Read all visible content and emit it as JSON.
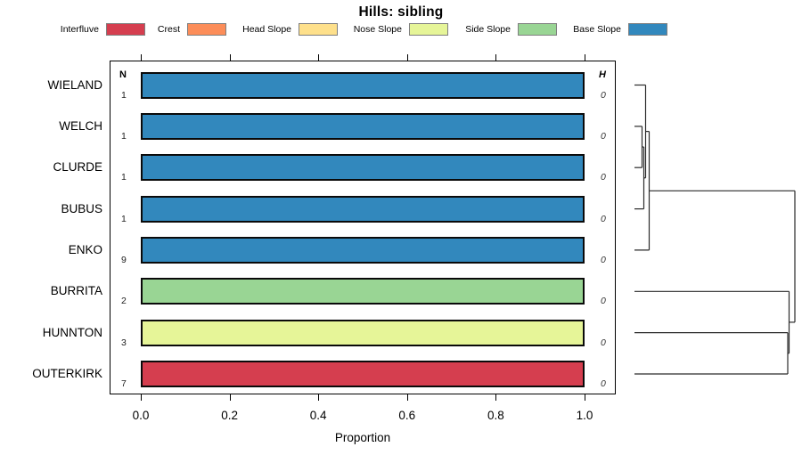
{
  "title": "Hills: sibling",
  "legend": {
    "items": [
      {
        "label": "Interfluve",
        "color": "#D53E4F"
      },
      {
        "label": "Crest",
        "color": "#FC8D59"
      },
      {
        "label": "Head Slope",
        "color": "#FEE08B"
      },
      {
        "label": "Nose Slope",
        "color": "#E6F598"
      },
      {
        "label": "Side Slope",
        "color": "#99D594"
      },
      {
        "label": "Base Slope",
        "color": "#3288BD"
      }
    ]
  },
  "chart_data": {
    "type": "bar",
    "orientation": "horizontal",
    "title": "Hills: sibling",
    "xlabel": "Proportion",
    "xlim": [
      0.0,
      1.0
    ],
    "x_ticks": [
      "0.0",
      "0.2",
      "0.4",
      "0.6",
      "0.8",
      "1.0"
    ],
    "n_header": "N",
    "h_header": "H",
    "categories": [
      "WIELAND",
      "WELCH",
      "CLURDE",
      "BUBUS",
      "ENKO",
      "BURRITA",
      "HUNNTON",
      "OUTERKIRK"
    ],
    "rows": [
      {
        "label": "WIELAND",
        "n": "1",
        "h": "0",
        "class": "Base Slope",
        "proportion": 1.0,
        "color": "#3288BD"
      },
      {
        "label": "WELCH",
        "n": "1",
        "h": "0",
        "class": "Base Slope",
        "proportion": 1.0,
        "color": "#3288BD"
      },
      {
        "label": "CLURDE",
        "n": "1",
        "h": "0",
        "class": "Base Slope",
        "proportion": 1.0,
        "color": "#3288BD"
      },
      {
        "label": "BUBUS",
        "n": "1",
        "h": "0",
        "class": "Base Slope",
        "proportion": 1.0,
        "color": "#3288BD"
      },
      {
        "label": "ENKO",
        "n": "9",
        "h": "0",
        "class": "Base Slope",
        "proportion": 1.0,
        "color": "#3288BD"
      },
      {
        "label": "BURRITA",
        "n": "2",
        "h": "0",
        "class": "Side Slope",
        "proportion": 1.0,
        "color": "#99D594"
      },
      {
        "label": "HUNNTON",
        "n": "3",
        "h": "0",
        "class": "Nose Slope",
        "proportion": 1.0,
        "color": "#E6F598"
      },
      {
        "label": "OUTERKIRK",
        "n": "7",
        "h": "0",
        "class": "Interfluve",
        "proportion": 1.0,
        "color": "#D53E4F"
      }
    ],
    "legend_categories": [
      "Interfluve",
      "Crest",
      "Head Slope",
      "Nose Slope",
      "Side Slope",
      "Base Slope"
    ],
    "dendrogram": {
      "description": "hierarchical clustering of rows, heights ~0 for top five rows, drawn to right of plot",
      "merges": [
        [
          "WELCH",
          "CLURDE"
        ],
        [
          [
            "WELCH",
            "CLURDE"
          ],
          "BUBUS"
        ],
        [
          "WIELAND",
          [
            [
              "WELCH",
              "CLURDE"
            ],
            "BUBUS"
          ]
        ],
        [
          [
            "WIELAND",
            "WELCH",
            "CLURDE",
            "BUBUS"
          ],
          "ENKO"
        ],
        [
          "HUNNTON",
          "OUTERKIRK"
        ],
        [
          "BURRITA",
          [
            "HUNNTON",
            "OUTERKIRK"
          ]
        ],
        [
          [
            "WIELAND",
            "WELCH",
            "CLURDE",
            "BUBUS",
            "ENKO"
          ],
          [
            "BURRITA",
            "HUNNTON",
            "OUTERKIRK"
          ]
        ]
      ],
      "segments": [
        [
          712,
          95.5,
          724.5,
          95.5
        ],
        [
          712,
          141.9,
          720.5,
          141.9
        ],
        [
          712,
          188.2,
          720.5,
          188.2
        ],
        [
          712,
          234.6,
          722.5,
          234.6
        ],
        [
          712,
          280.9,
          728.5,
          280.9
        ],
        [
          712,
          327.3,
          885.5,
          327.3
        ],
        [
          712,
          373.6,
          884,
          373.6
        ],
        [
          712,
          420.0,
          884,
          420.0
        ],
        [
          720.5,
          141.9,
          720.5,
          188.2
        ],
        [
          720.5,
          165.0,
          722.5,
          165.0
        ],
        [
          722.5,
          165.0,
          722.5,
          234.6
        ],
        [
          722.5,
          199.8,
          724.5,
          199.8
        ],
        [
          724.5,
          95.5,
          724.5,
          199.8
        ],
        [
          724.5,
          147.6,
          728.5,
          147.6
        ],
        [
          728.5,
          147.6,
          728.5,
          280.9
        ],
        [
          728.5,
          214.3,
          892,
          214.3
        ],
        [
          892,
          214.3,
          892,
          361.9
        ],
        [
          884,
          373.6,
          884,
          420.0
        ],
        [
          884,
          396.8,
          885.5,
          396.8
        ],
        [
          885.5,
          327.3,
          885.5,
          396.8
        ],
        [
          885.5,
          361.9,
          892,
          361.9
        ]
      ]
    }
  }
}
